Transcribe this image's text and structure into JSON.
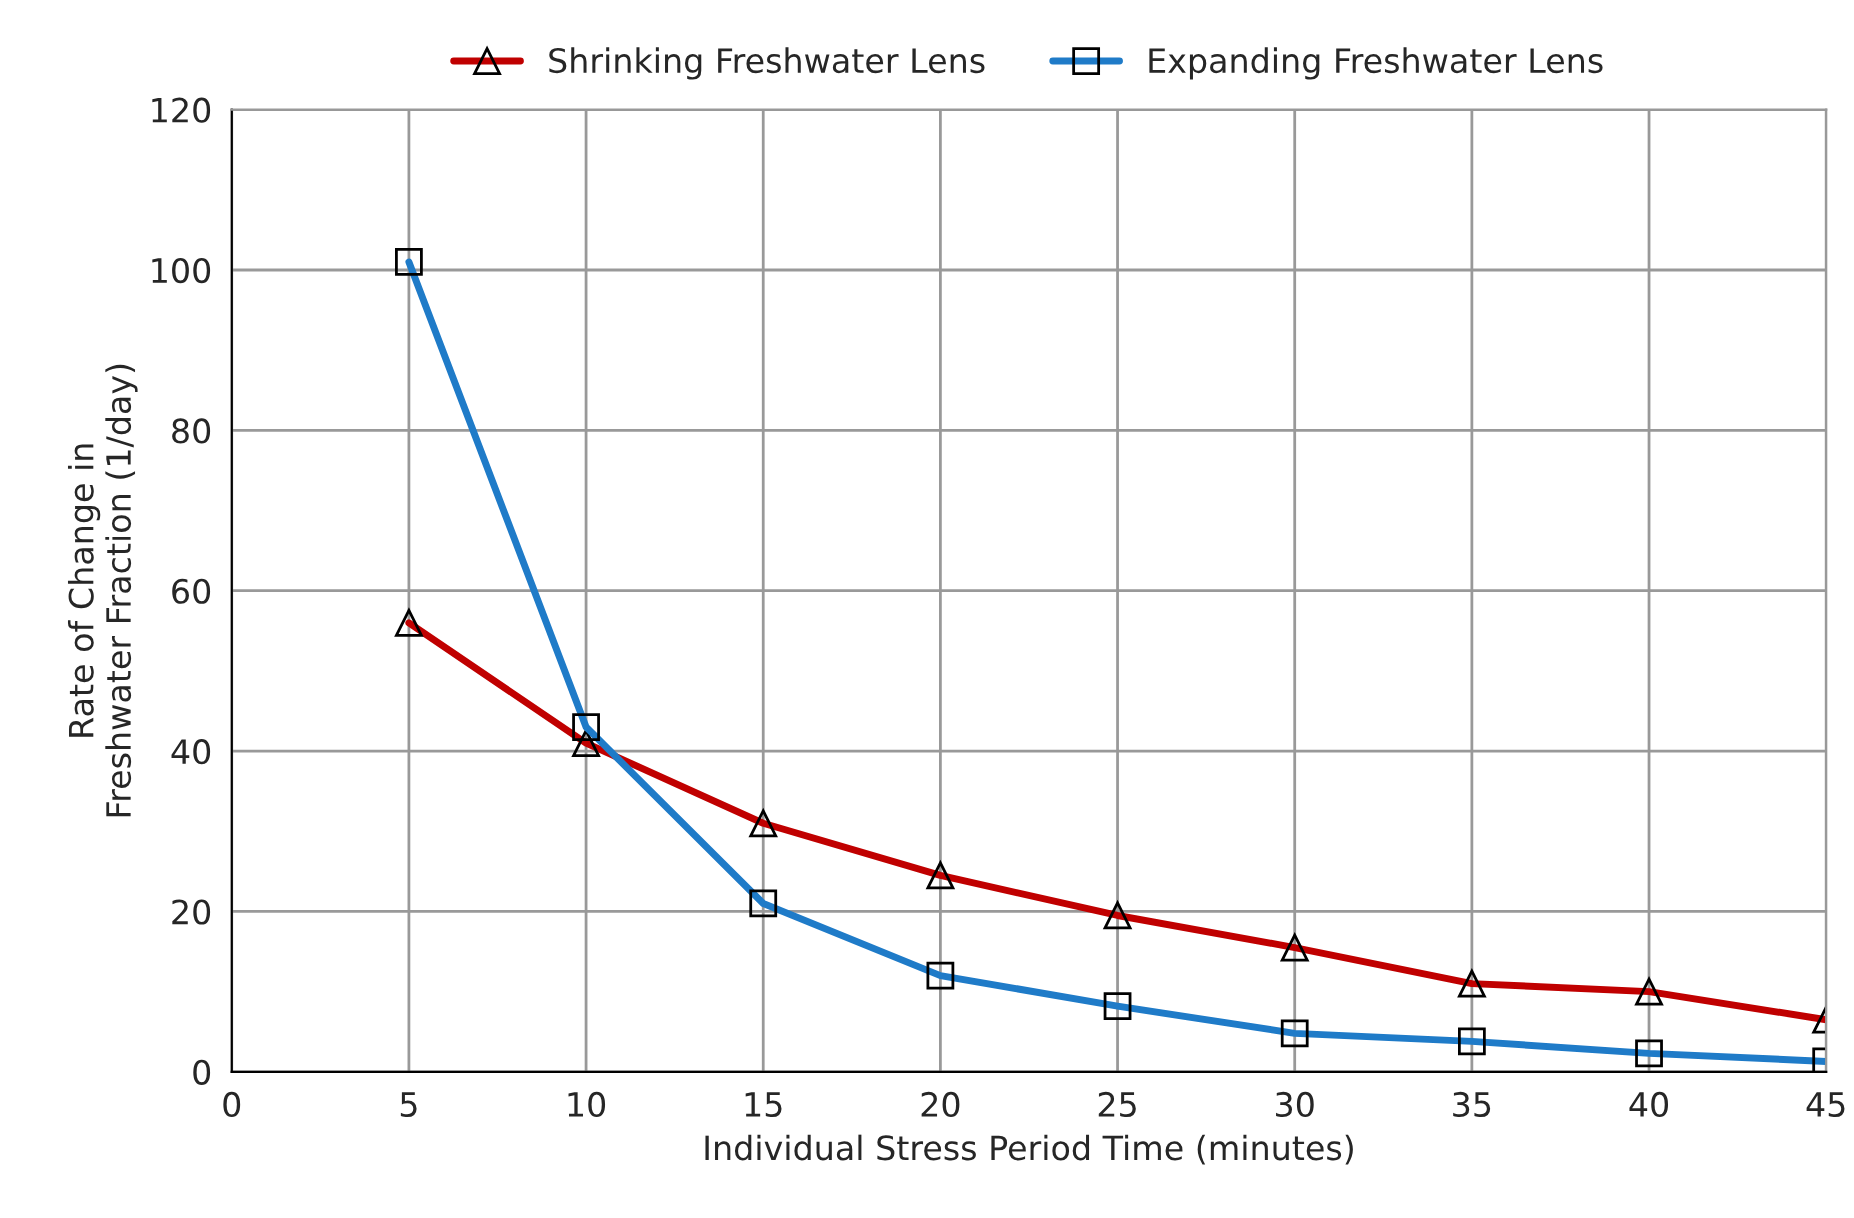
{
  "chart_data": {
    "type": "line",
    "xlabel": "Individual Stress Period Time (minutes)",
    "ylabel": "Rate of Change in\nFreshwater Fraction (1/day)",
    "x": [
      5,
      10,
      15,
      20,
      25,
      30,
      35,
      40,
      45
    ],
    "series": [
      {
        "name": "Shrinking Freshwater Lens",
        "color": "#c00000",
        "marker": "triangle",
        "values": [
          56,
          41,
          31,
          24.5,
          19.5,
          15.5,
          11,
          10,
          6.5
        ]
      },
      {
        "name": "Expanding Freshwater Lens",
        "color": "#1f7bc8",
        "marker": "square",
        "values": [
          101,
          43,
          21,
          12,
          8.2,
          4.8,
          3.8,
          2.3,
          1.3
        ]
      }
    ],
    "xlim": [
      0,
      45
    ],
    "xticks": [
      0,
      5,
      10,
      15,
      20,
      25,
      30,
      35,
      40,
      45
    ],
    "ylim": [
      0,
      120
    ],
    "yticks": [
      0,
      20,
      40,
      60,
      80,
      100,
      120
    ],
    "grid": true,
    "legend": "top",
    "line_style": "solid"
  }
}
